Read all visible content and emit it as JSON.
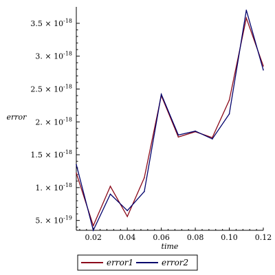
{
  "chart_data": {
    "type": "line",
    "xlabel": "time",
    "ylabel": "error",
    "xlim": [
      0.01,
      0.12
    ],
    "ylim": [
      3.5e-19,
      3.75e-18
    ],
    "x_ticks": [
      0.02,
      0.04,
      0.06,
      0.08,
      0.1,
      0.12
    ],
    "x_tick_labels": [
      "0.02",
      "0.04",
      "0.06",
      "0.08",
      "0.10",
      "0.12"
    ],
    "y_ticks": [
      {
        "value": 5e-19,
        "mantissa": "5.",
        "exponent": "-19"
      },
      {
        "value": 1e-18,
        "mantissa": "1.",
        "exponent": "-18"
      },
      {
        "value": 1.5e-18,
        "mantissa": "1.5",
        "exponent": "-18"
      },
      {
        "value": 2e-18,
        "mantissa": "2.",
        "exponent": "-18"
      },
      {
        "value": 2.5e-18,
        "mantissa": "2.5",
        "exponent": "-18"
      },
      {
        "value": 3e-18,
        "mantissa": "3.",
        "exponent": "-18"
      },
      {
        "value": 3.5e-18,
        "mantissa": "3.5",
        "exponent": "-18"
      }
    ],
    "x": [
      0.01,
      0.02,
      0.03,
      0.04,
      0.05,
      0.06,
      0.07,
      0.08,
      0.09,
      0.1,
      0.11,
      0.12
    ],
    "series": [
      {
        "name": "error1",
        "color": "#8b0a1a",
        "values": [
          1.22e-18,
          4.2e-19,
          1.02e-18,
          5.6e-19,
          1.15e-18,
          2.4e-18,
          1.77e-18,
          1.85e-18,
          1.76e-18,
          2.33e-18,
          3.58e-18,
          2.85e-18
        ]
      },
      {
        "name": "error2",
        "color": "#00006b",
        "values": [
          1.35e-18,
          3.5e-19,
          9e-19,
          6.5e-19,
          9.4e-19,
          2.42e-18,
          1.8e-18,
          1.86e-18,
          1.74e-18,
          2.12e-18,
          3.7e-18,
          2.79e-18
        ]
      }
    ],
    "grid": false,
    "legend": "bottom"
  }
}
